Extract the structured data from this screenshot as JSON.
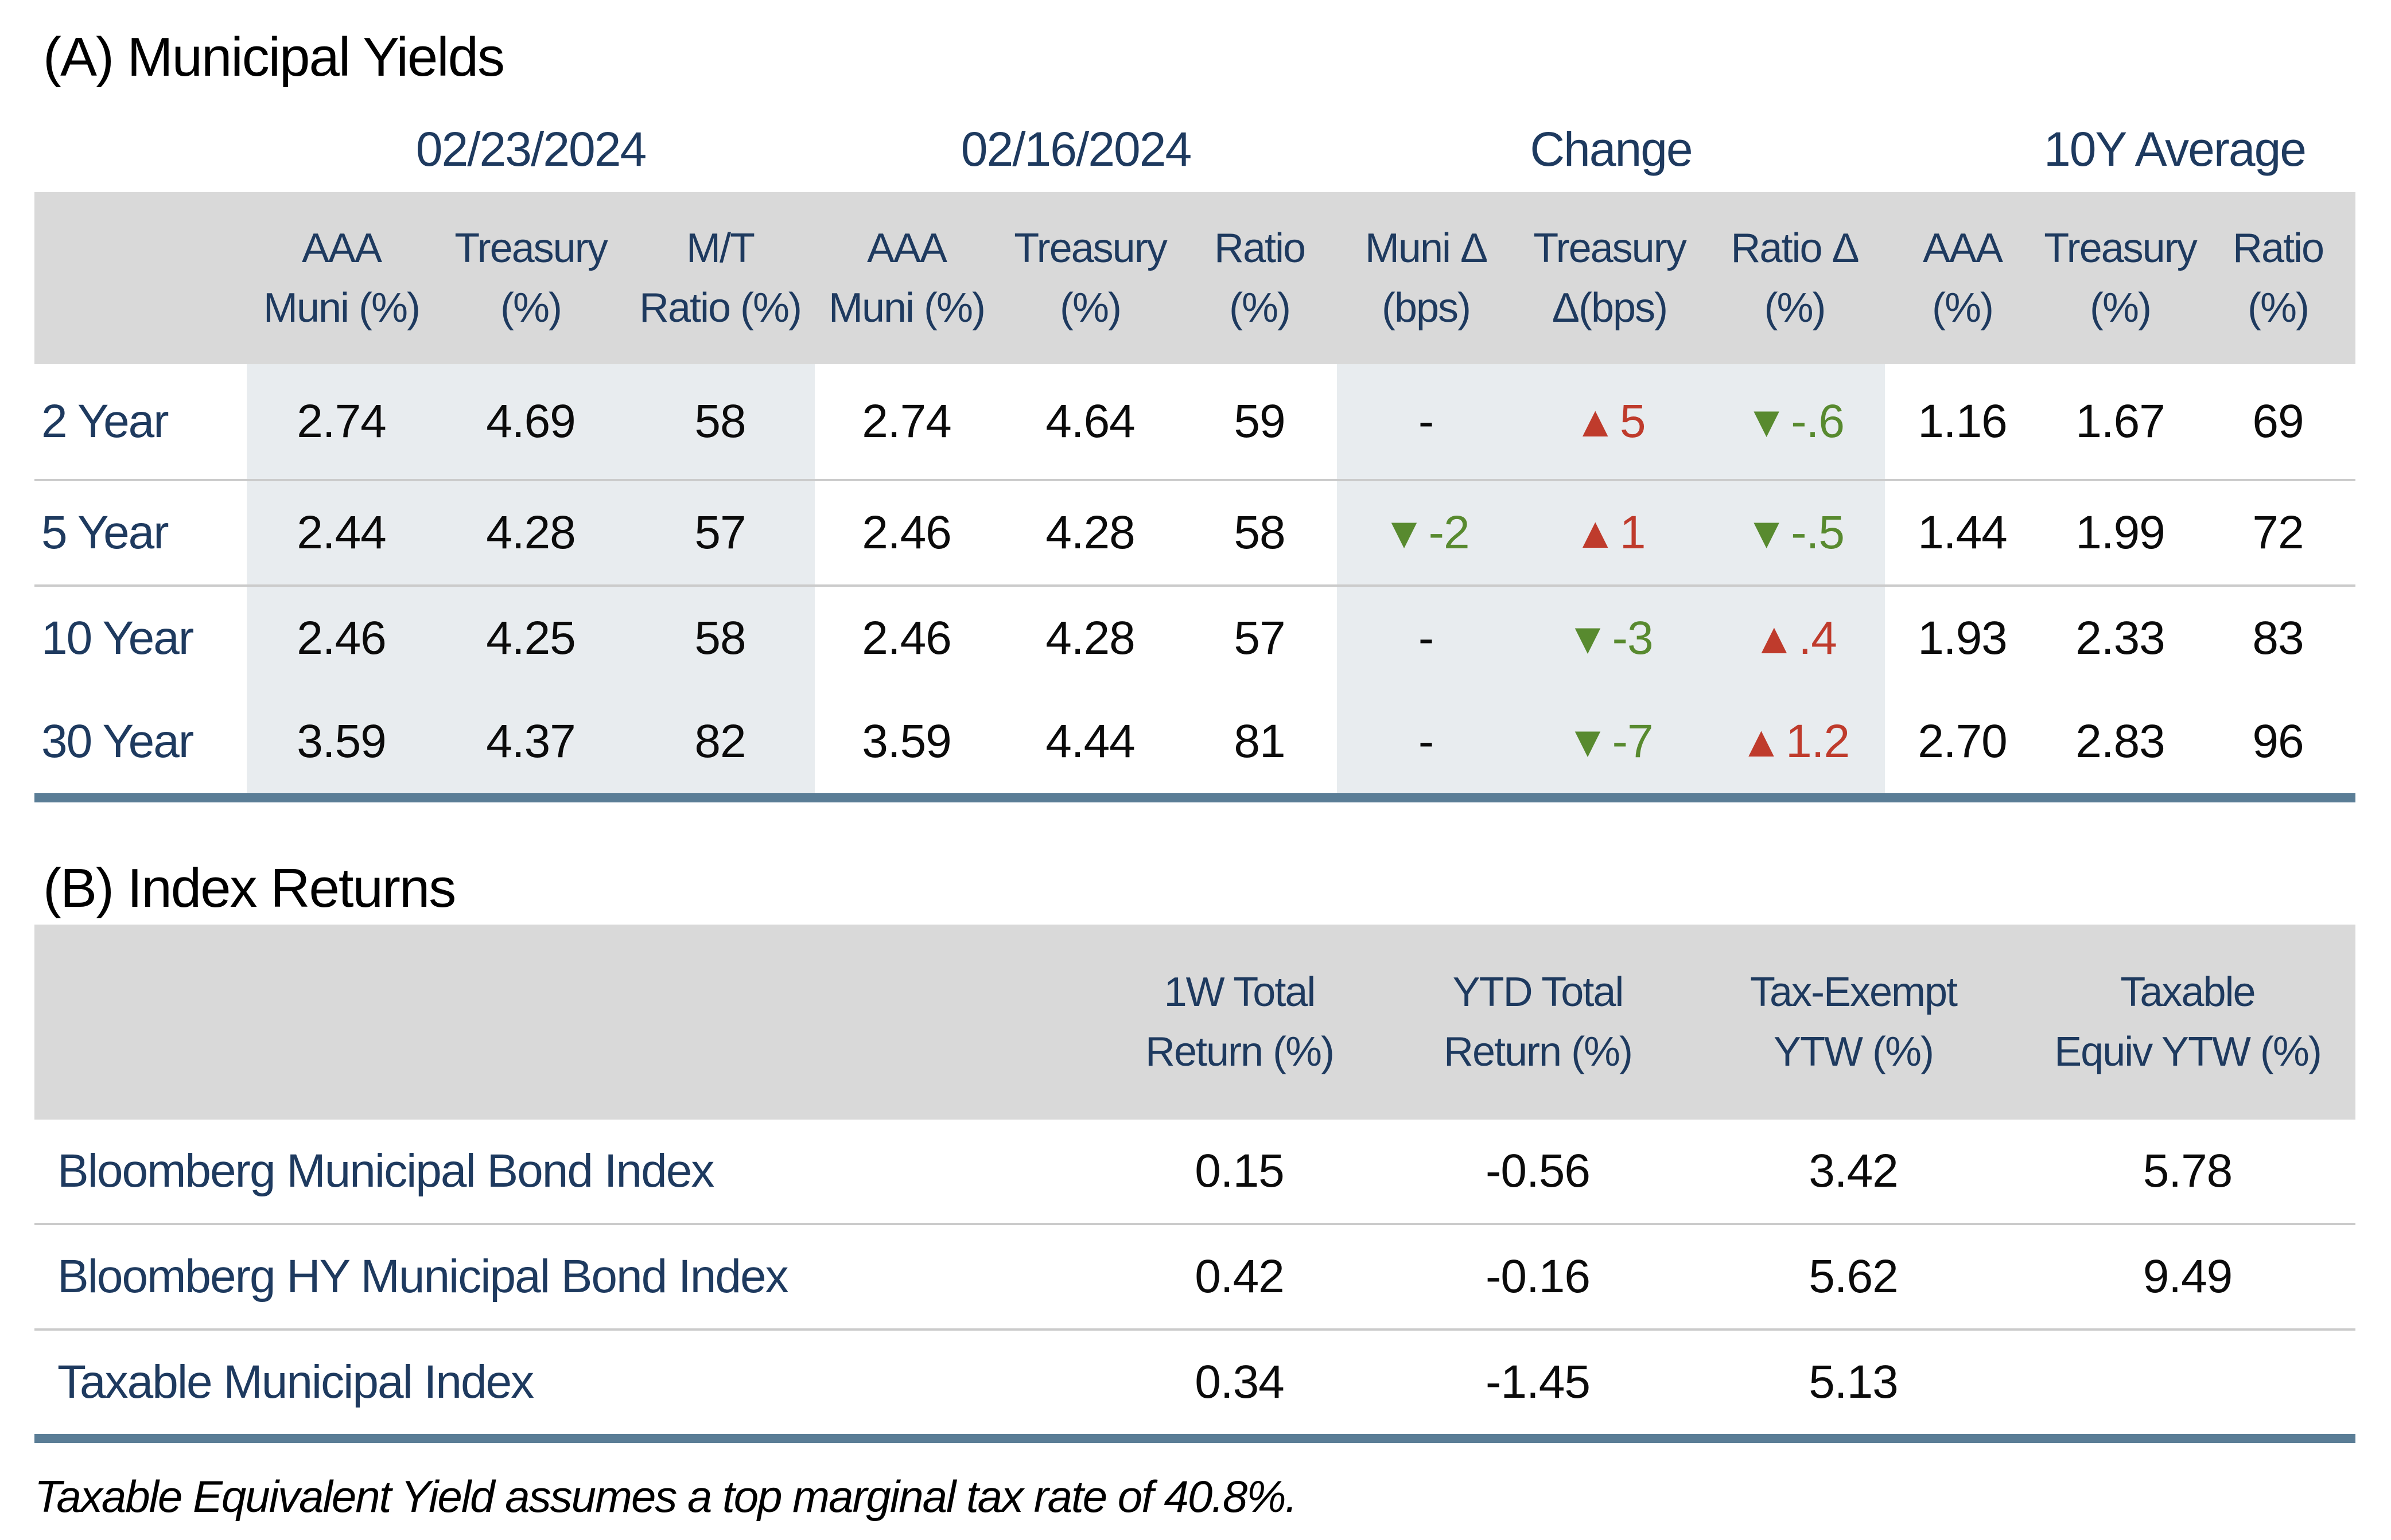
{
  "colors": {
    "navy_text": "#1e3a5f",
    "body_text": "#0b0b0b",
    "up_red": "#bf3b2c",
    "down_green": "#588a2f",
    "header_band_gray": "#d9d9d9",
    "tint_band_blue": "#e8ecef",
    "row_separator": "#cbcbcb",
    "steel_bottom_bar": "#5a7d96"
  },
  "icons": {
    "up_triangle": "▲",
    "down_triangle": "▼"
  },
  "section_a": {
    "title": "(A) Municipal Yields",
    "group_headers": [
      "02/23/2024",
      "02/16/2024",
      "Change",
      "10Y Average"
    ],
    "sub_headers": [
      {
        "l1": "AAA",
        "l2": "Muni (%)"
      },
      {
        "l1": "Treasury",
        "l2": "(%)"
      },
      {
        "l1": "M/T",
        "l2": "Ratio (%)"
      },
      {
        "l1": "AAA",
        "l2": "Muni (%)"
      },
      {
        "l1": "Treasury",
        "l2": "(%)"
      },
      {
        "l1": "Ratio",
        "l2": "(%)"
      },
      {
        "l1": "Muni Δ",
        "l2": "(bps)"
      },
      {
        "l1": "Treasury",
        "l2": "Δ(bps)"
      },
      {
        "l1": "Ratio Δ",
        "l2": "(%)"
      },
      {
        "l1": "AAA",
        "l2": "(%)"
      },
      {
        "l1": "Treasury",
        "l2": "(%)"
      },
      {
        "l1": "Ratio",
        "l2": "(%)"
      }
    ],
    "rows": [
      {
        "label": "2 Year",
        "c0223": [
          "2.74",
          "4.69",
          "58"
        ],
        "c0216": [
          "2.74",
          "4.64",
          "59"
        ],
        "change": [
          {
            "dir": "none",
            "text": "-"
          },
          {
            "dir": "up",
            "text": "5"
          },
          {
            "dir": "down",
            "text": "-.6"
          }
        ],
        "avg10y": [
          "1.16",
          "1.67",
          "69"
        ]
      },
      {
        "label": "5 Year",
        "c0223": [
          "2.44",
          "4.28",
          "57"
        ],
        "c0216": [
          "2.46",
          "4.28",
          "58"
        ],
        "change": [
          {
            "dir": "down",
            "text": "-2"
          },
          {
            "dir": "up",
            "text": "1"
          },
          {
            "dir": "down",
            "text": "-.5"
          }
        ],
        "avg10y": [
          "1.44",
          "1.99",
          "72"
        ]
      },
      {
        "label": "10 Year",
        "c0223": [
          "2.46",
          "4.25",
          "58"
        ],
        "c0216": [
          "2.46",
          "4.28",
          "57"
        ],
        "change": [
          {
            "dir": "none",
            "text": "-"
          },
          {
            "dir": "down",
            "text": "-3"
          },
          {
            "dir": "up",
            "text": ".4"
          }
        ],
        "avg10y": [
          "1.93",
          "2.33",
          "83"
        ]
      },
      {
        "label": "30 Year",
        "c0223": [
          "3.59",
          "4.37",
          "82"
        ],
        "c0216": [
          "3.59",
          "4.44",
          "81"
        ],
        "change": [
          {
            "dir": "none",
            "text": "-"
          },
          {
            "dir": "down",
            "text": "-7"
          },
          {
            "dir": "up",
            "text": "1.2"
          }
        ],
        "avg10y": [
          "2.70",
          "2.83",
          "96"
        ]
      }
    ]
  },
  "section_b": {
    "title": "(B) Index Returns",
    "col_headers": [
      {
        "l1": "1W Total",
        "l2": "Return (%)"
      },
      {
        "l1": "YTD Total",
        "l2": "Return (%)"
      },
      {
        "l1": "Tax-Exempt",
        "l2": "YTW (%)"
      },
      {
        "l1": "Taxable",
        "l2": "Equiv YTW (%)"
      }
    ],
    "rows": [
      {
        "label": "Bloomberg Municipal Bond Index",
        "values": [
          "0.15",
          "-0.56",
          "3.42",
          "5.78"
        ]
      },
      {
        "label": "Bloomberg HY Municipal Bond Index",
        "values": [
          "0.42",
          "-0.16",
          "5.62",
          "9.49"
        ]
      },
      {
        "label": "Taxable Municipal Index",
        "values": [
          "0.34",
          "-1.45",
          "5.13",
          ""
        ]
      }
    ]
  },
  "footnote": "Taxable Equivalent Yield assumes a top marginal tax rate of 40.8%."
}
